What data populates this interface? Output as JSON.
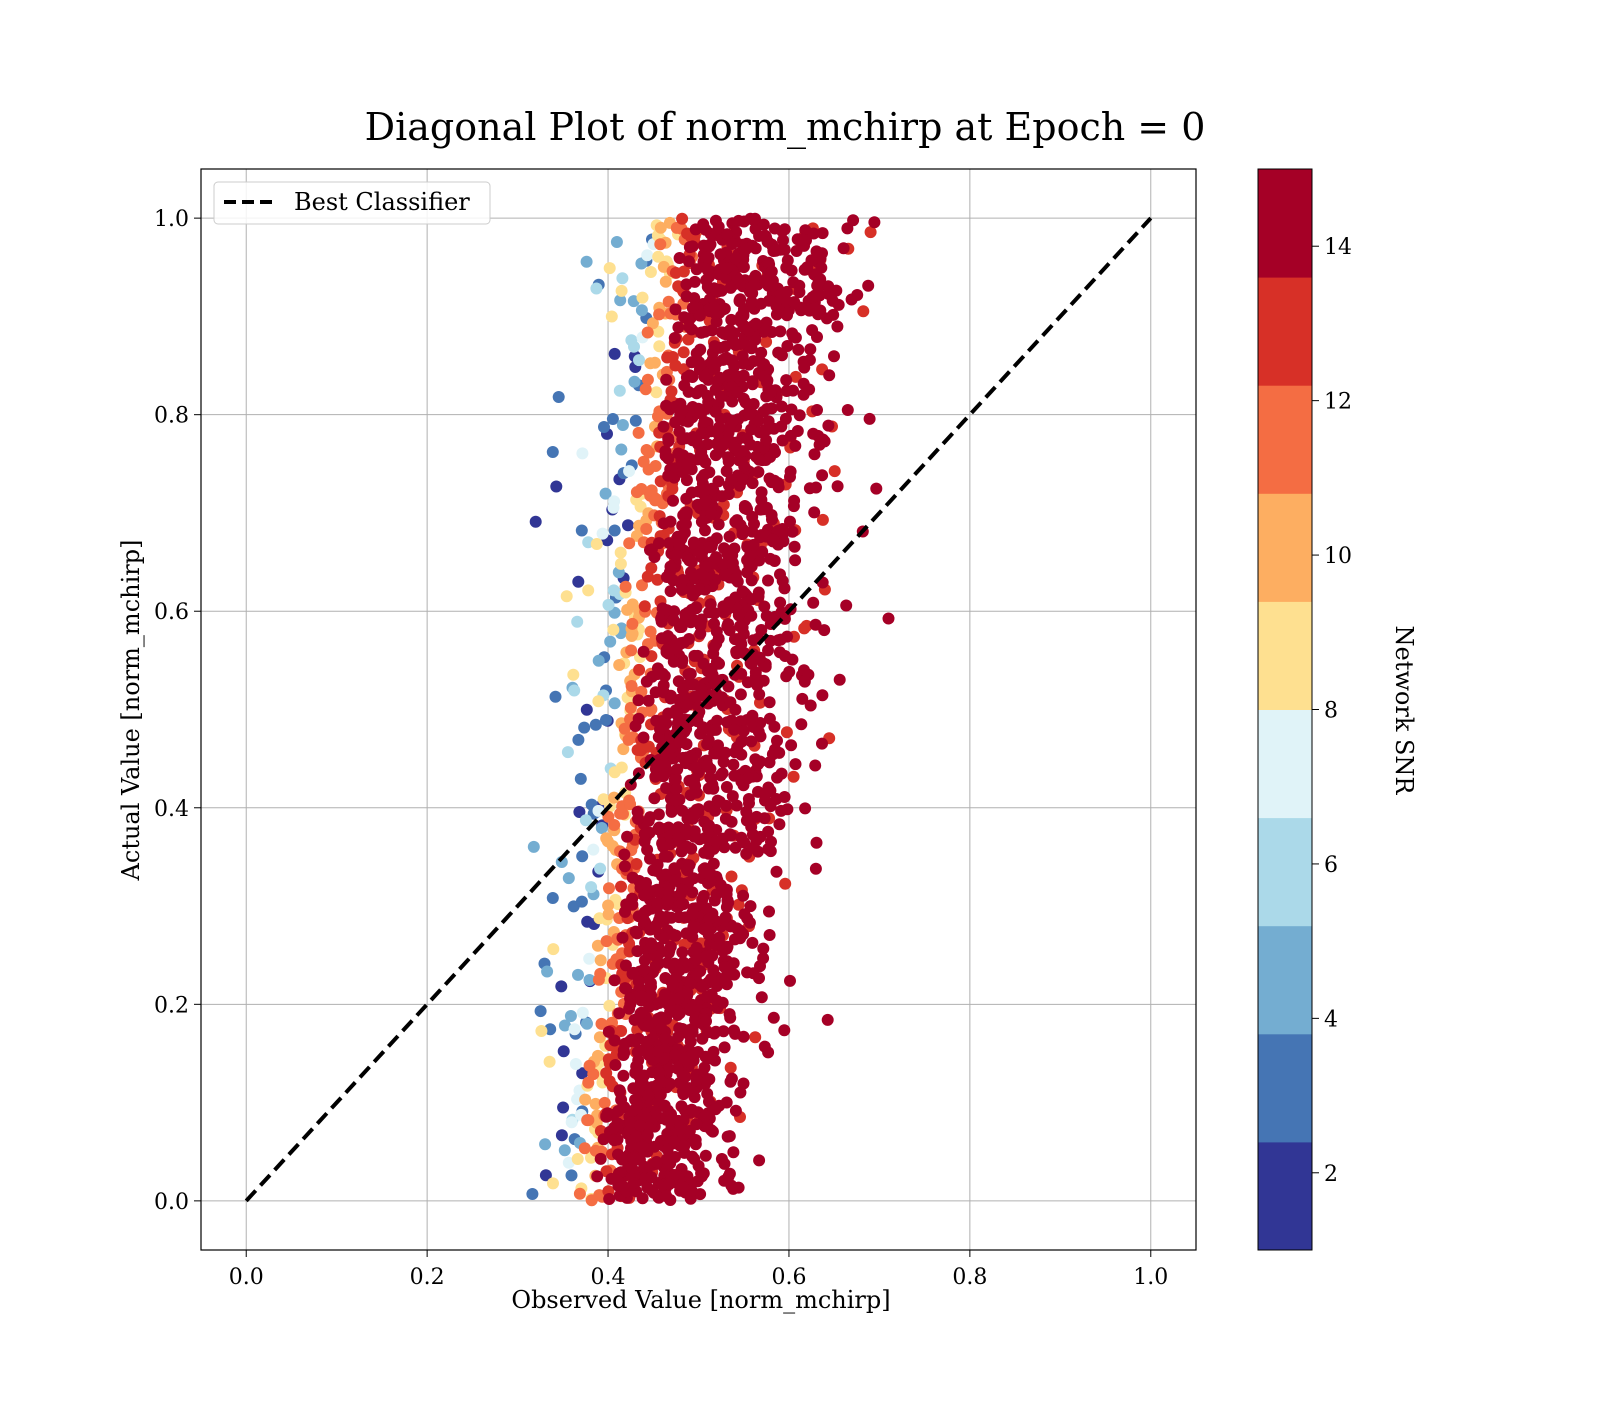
{
  "chart_data": {
    "type": "scatter",
    "title": "Diagonal Plot of norm_mchirp at Epoch = 0",
    "xlabel": "Observed Value [norm_mchirp]",
    "ylabel": "Actual Value [norm_mchirp]",
    "xlim": [
      -0.05,
      1.05
    ],
    "ylim": [
      -0.05,
      1.05
    ],
    "x_ticks": [
      "0.0",
      "0.2",
      "0.4",
      "0.6",
      "0.8",
      "1.0"
    ],
    "y_ticks": [
      "0.0",
      "0.2",
      "0.4",
      "0.6",
      "0.8",
      "1.0"
    ],
    "grid": true,
    "legend": {
      "position": "top-left",
      "entries": [
        "Best Classifier"
      ]
    },
    "reference_line": {
      "name": "Best Classifier",
      "x": [
        0.0,
        1.0
      ],
      "y": [
        0.0,
        1.0
      ],
      "style": "dashed",
      "color": "#000000"
    },
    "colorbar": {
      "label": "Network SNR",
      "range": [
        1,
        15
      ],
      "ticks": [
        "2",
        "4",
        "6",
        "8",
        "10",
        "12",
        "14"
      ],
      "colors": [
        "#313695",
        "#4575b4",
        "#74add1",
        "#abd9e9",
        "#e0f3f8",
        "#fee090",
        "#fdae61",
        "#f46d43",
        "#d73027",
        "#a50026"
      ]
    },
    "point_cloud": {
      "description_values": "approximate distribution of scatter points",
      "x_range": [
        0.3,
        0.73
      ],
      "y_range": [
        0.0,
        1.0
      ],
      "x_center_at_y0": 0.44,
      "x_center_at_y1": 0.55,
      "dominant_snr": 14
    }
  }
}
